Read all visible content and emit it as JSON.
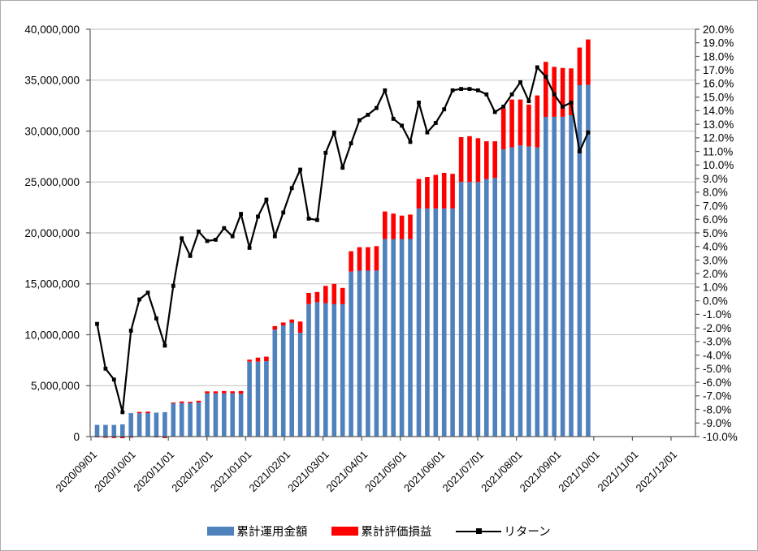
{
  "chart_data": {
    "type": "combo-bar-line",
    "title": "",
    "categories_note": "weekly data points from 2020/09 to 2021/10, stacked bars on left axis, return line on right axis",
    "x_axis": {
      "tick_labels": [
        "2020/09/01",
        "2020/10/01",
        "2020/11/01",
        "2020/12/01",
        "2021/01/01",
        "2021/02/01",
        "2021/03/01",
        "2021/04/01",
        "2021/05/01",
        "2021/06/01",
        "2021/07/01",
        "2021/08/01",
        "2021/09/01",
        "2021/10/01",
        "2021/11/01",
        "2021/12/01"
      ]
    },
    "left_axis": {
      "min": 0,
      "max": 40000000,
      "step": 5000000,
      "tick_labels": [
        "0",
        "5,000,000",
        "10,000,000",
        "15,000,000",
        "20,000,000",
        "25,000,000",
        "30,000,000",
        "35,000,000",
        "40,000,000"
      ]
    },
    "right_axis": {
      "min": -10.0,
      "max": 20.0,
      "step": 1.0,
      "tick_labels": [
        "20.0%",
        "19.0%",
        "18.0%",
        "17.0%",
        "16.0%",
        "15.0%",
        "14.0%",
        "13.0%",
        "12.0%",
        "11.0%",
        "10.0%",
        "9.0%",
        "8.0%",
        "7.0%",
        "6.0%",
        "5.0%",
        "4.0%",
        "3.0%",
        "2.0%",
        "1.0%",
        "0.0%",
        "-1.0%",
        "-2.0%",
        "-3.0%",
        "-4.0%",
        "-5.0%",
        "-6.0%",
        "-7.0%",
        "-8.0%",
        "-9.0%",
        "-10.0%"
      ]
    },
    "grid": "horizontal-major-only",
    "legend_position": "bottom-center",
    "series": [
      {
        "name": "累計運用金額",
        "type": "bar-stacked-base",
        "color": "#4F81BD",
        "values": [
          1150000,
          1150000,
          1150000,
          1200000,
          2300000,
          2300000,
          2300000,
          2350000,
          2400000,
          3300000,
          3300000,
          3300000,
          3350000,
          4250000,
          4250000,
          4250000,
          4250000,
          4200000,
          7350000,
          7350000,
          7400000,
          10500000,
          10900000,
          11200000,
          10200000,
          13000000,
          13200000,
          13100000,
          13000000,
          13000000,
          16200000,
          16300000,
          16300000,
          16300000,
          19400000,
          19400000,
          19400000,
          19400000,
          22400000,
          22400000,
          22400000,
          22400000,
          22400000,
          25000000,
          25000000,
          25000000,
          25300000,
          25400000,
          28200000,
          28400000,
          28600000,
          28500000,
          28400000,
          31400000,
          31400000,
          31400000,
          31550000,
          34500000,
          34550000
        ]
      },
      {
        "name": "累計評価損益",
        "type": "bar-stacked-top",
        "color": "#FF0000",
        "values": [
          -60000,
          -120000,
          -140000,
          -160000,
          -110000,
          120000,
          150000,
          -60000,
          -140000,
          50000,
          150000,
          120000,
          170000,
          190000,
          190000,
          230000,
          200000,
          270000,
          200000,
          400000,
          450000,
          350000,
          300000,
          300000,
          1100000,
          1100000,
          1000000,
          1700000,
          2000000,
          1600000,
          2000000,
          2300000,
          2300000,
          2400000,
          2700000,
          2500000,
          2300000,
          2400000,
          2900000,
          3100000,
          3300000,
          3500000,
          3400000,
          4400000,
          4500000,
          4300000,
          3700000,
          3600000,
          4000000,
          4700000,
          4500000,
          4100000,
          5100000,
          5400000,
          4900000,
          4800000,
          4600000,
          3700000,
          4450000
        ]
      },
      {
        "name": "リターン",
        "type": "line",
        "axis": "right",
        "color": "#000000",
        "marker": "square",
        "values_pct": [
          -1.7,
          -5.0,
          -5.8,
          -8.2,
          -2.2,
          0.1,
          0.6,
          -1.3,
          -3.3,
          1.1,
          4.6,
          3.3,
          5.1,
          4.4,
          4.5,
          5.35,
          4.75,
          6.4,
          3.9,
          6.2,
          7.45,
          4.75,
          6.5,
          8.3,
          9.66,
          6.05,
          5.95,
          10.9,
          12.4,
          9.8,
          11.6,
          13.3,
          13.7,
          14.2,
          15.5,
          13.4,
          12.9,
          11.7,
          14.6,
          12.4,
          13.1,
          14.1,
          15.5,
          15.6,
          15.6,
          15.5,
          15.2,
          13.9,
          14.3,
          15.2,
          16.1,
          14.7,
          17.2,
          16.5,
          15.2,
          14.3,
          14.6,
          11.0,
          12.4
        ]
      }
    ],
    "colors": {
      "gridline": "#BFBFBF",
      "axis_line": "#595959",
      "tick_text": "#000000",
      "background": "#FFFFFF",
      "border": "#ABABAB"
    }
  }
}
